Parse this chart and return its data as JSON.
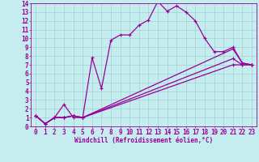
{
  "xlabel": "Windchill (Refroidissement éolien,°C)",
  "xlim": [
    -0.5,
    23.5
  ],
  "ylim": [
    0,
    14
  ],
  "xticks": [
    0,
    1,
    2,
    3,
    4,
    5,
    6,
    7,
    8,
    9,
    10,
    11,
    12,
    13,
    14,
    15,
    16,
    17,
    18,
    19,
    20,
    21,
    22,
    23
  ],
  "yticks": [
    0,
    1,
    2,
    3,
    4,
    5,
    6,
    7,
    8,
    9,
    10,
    11,
    12,
    13,
    14
  ],
  "bg_color": "#c5ecee",
  "line_color": "#990099",
  "grid_color": "#99cccc",
  "line1_x": [
    0,
    1,
    2,
    3,
    4,
    5,
    6,
    7,
    8,
    9,
    10,
    11,
    12,
    13,
    14,
    15,
    16,
    17,
    18,
    19,
    20,
    21,
    22,
    23
  ],
  "line1_y": [
    1.2,
    0.3,
    1.0,
    1.0,
    1.2,
    1.0,
    7.8,
    4.3,
    9.8,
    10.4,
    10.4,
    11.5,
    12.1,
    14.2,
    13.1,
    13.7,
    13.0,
    12.0,
    10.0,
    8.5,
    8.5,
    9.0,
    7.2,
    7.0
  ],
  "line2_x": [
    0,
    1,
    2,
    3,
    4,
    5,
    21,
    22,
    23
  ],
  "line2_y": [
    1.2,
    0.3,
    1.0,
    1.0,
    1.2,
    1.0,
    8.8,
    7.2,
    7.0
  ],
  "line3_x": [
    0,
    1,
    2,
    3,
    4,
    5,
    21,
    22,
    23
  ],
  "line3_y": [
    1.2,
    0.3,
    1.0,
    1.0,
    1.2,
    1.0,
    7.7,
    7.0,
    7.0
  ],
  "line4_x": [
    0,
    1,
    2,
    3,
    4,
    5,
    21,
    22,
    23
  ],
  "line4_y": [
    1.2,
    0.3,
    1.0,
    2.5,
    1.0,
    1.0,
    7.0,
    7.0,
    7.0
  ],
  "font_size": 5.5,
  "lw": 0.9,
  "ms": 3.5
}
